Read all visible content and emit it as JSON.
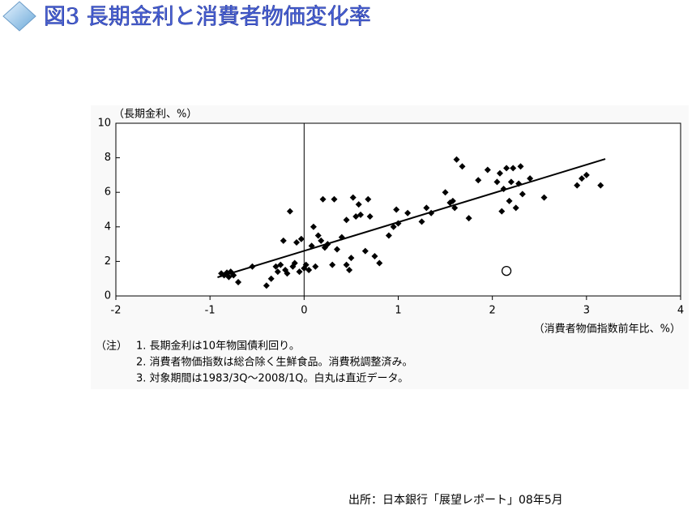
{
  "header": {
    "title": "図3 長期金利と消費者物価変化率"
  },
  "chart_data": {
    "type": "scatter",
    "y_axis_label": "（長期金利、%）",
    "x_axis_label": "（消費者物価指数前年比、%）",
    "xlim": [
      -2,
      4
    ],
    "xticks": [
      -2,
      -1,
      0,
      1,
      2,
      3,
      4
    ],
    "ylim": [
      0,
      10
    ],
    "yticks": [
      0,
      2,
      4,
      6,
      8,
      10
    ],
    "reference_line_x": 0,
    "color": "#000000",
    "x": [
      -0.88,
      -0.85,
      -0.82,
      -0.8,
      -0.78,
      -0.75,
      -0.7,
      -0.55,
      -0.4,
      -0.35,
      -0.3,
      -0.28,
      -0.25,
      -0.22,
      -0.2,
      -0.18,
      -0.15,
      -0.12,
      -0.1,
      -0.08,
      -0.05,
      -0.03,
      0.0,
      0.02,
      0.05,
      0.08,
      0.1,
      0.12,
      0.15,
      0.18,
      0.2,
      0.22,
      0.25,
      0.3,
      0.32,
      0.35,
      0.4,
      0.45,
      0.45,
      0.48,
      0.5,
      0.52,
      0.55,
      0.58,
      0.6,
      0.65,
      0.68,
      0.7,
      0.75,
      0.8,
      0.9,
      0.95,
      0.98,
      1.0,
      1.1,
      1.25,
      1.3,
      1.35,
      1.5,
      1.55,
      1.58,
      1.6,
      1.62,
      1.68,
      1.75,
      1.85,
      1.95,
      2.05,
      2.08,
      2.1,
      2.12,
      2.15,
      2.18,
      2.2,
      2.22,
      2.25,
      2.28,
      2.3,
      2.32,
      2.4,
      2.55,
      2.9,
      2.95,
      3.0,
      3.15
    ],
    "values": [
      1.3,
      1.2,
      1.35,
      1.1,
      1.4,
      1.2,
      0.8,
      1.7,
      0.6,
      1.0,
      1.7,
      1.4,
      1.8,
      3.2,
      1.5,
      1.3,
      4.9,
      1.7,
      1.9,
      3.1,
      1.4,
      3.3,
      1.6,
      1.8,
      1.5,
      2.9,
      4.0,
      1.7,
      3.5,
      3.2,
      5.6,
      2.8,
      3.0,
      1.8,
      5.6,
      2.7,
      3.4,
      4.4,
      1.8,
      1.5,
      2.2,
      5.7,
      4.6,
      5.3,
      4.7,
      2.6,
      5.6,
      4.6,
      2.3,
      1.9,
      3.5,
      4.0,
      5.0,
      4.2,
      4.8,
      4.3,
      5.1,
      4.8,
      6.0,
      5.4,
      5.5,
      5.1,
      7.9,
      7.5,
      4.5,
      6.7,
      7.3,
      6.6,
      7.1,
      4.9,
      6.2,
      7.4,
      5.5,
      6.6,
      7.4,
      5.1,
      6.5,
      7.5,
      5.9,
      6.8,
      5.7,
      6.4,
      6.8,
      7.0,
      6.4
    ],
    "highlight": {
      "x": [
        2.15
      ],
      "values": [
        1.45
      ]
    },
    "trend": {
      "x": [
        -0.92,
        3.2
      ],
      "values": [
        1.08,
        7.93
      ]
    }
  },
  "notes": {
    "label": "（注）",
    "lines": [
      "1.  長期金利は10年物国債利回り。",
      "2.  消費者物価指数は総合除く生鮮食品。消費税調整済み。",
      "3.  対象期間は1983/3Q～2008/1Q。白丸は直近データ。"
    ]
  },
  "source": "出所：日本銀行「展望レポート」08年5月"
}
